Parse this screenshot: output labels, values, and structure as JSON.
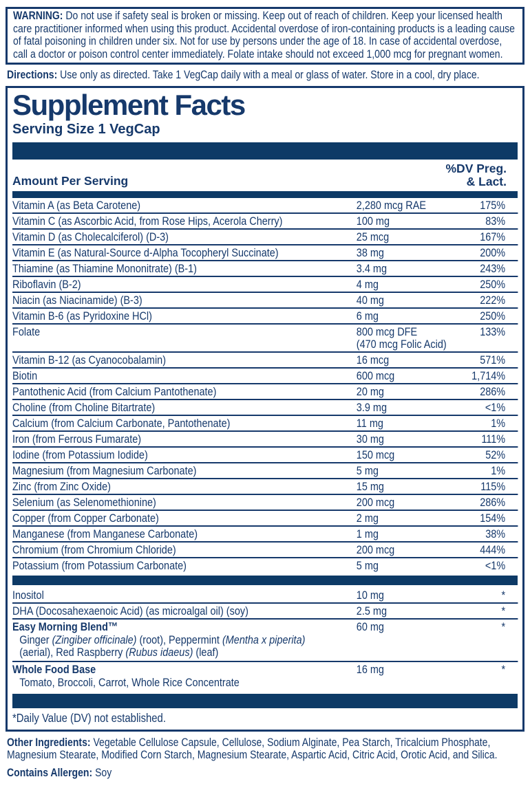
{
  "colors": {
    "ink": "#16396b",
    "bar": "#0d3a66"
  },
  "warning": {
    "label": "WARNING:",
    "text": "Do not use if safety seal is broken or missing. Keep out of reach of children. Keep your licensed health care practitioner informed when using this product. Accidental overdose of iron-containing products is a leading cause of fatal poisoning in children under six. Not for use by persons under the age of 18. In case of accidental overdose, call a doctor or poison control center immediately. Folate intake should not exceed 1,000 mcg for pregnant women."
  },
  "directions": {
    "label": "Directions:",
    "text": "Use only as directed. Take 1 VegCap daily with a meal or glass of water. Store in a cool, dry place."
  },
  "panel": {
    "title": "Supplement Facts",
    "serving_size": "Serving Size 1 VegCap",
    "header": {
      "amount_col": "Amount Per Serving",
      "dv_col_line1": "%DV Preg.",
      "dv_col_line2": "& Lact."
    },
    "sections": [
      {
        "rows": [
          {
            "name": "Vitamin A (as Beta Carotene)",
            "amount": "2,280 mcg RAE",
            "dv": "175%"
          },
          {
            "name": "Vitamin C (as Ascorbic Acid, from Rose Hips, Acerola Cherry)",
            "amount": "100 mg",
            "dv": "83%"
          },
          {
            "name": "Vitamin D (as Cholecalciferol) (D-3)",
            "amount": "25 mcg",
            "dv": "167%"
          },
          {
            "name": "Vitamin E (as Natural-Source d-Alpha Tocopheryl Succinate)",
            "amount": "38 mg",
            "dv": "200%"
          },
          {
            "name": "Thiamine (as Thiamine Mononitrate) (B-1)",
            "amount": "3.4 mg",
            "dv": "243%"
          },
          {
            "name": "Riboflavin (B-2)",
            "amount": "4 mg",
            "dv": "250%"
          },
          {
            "name": "Niacin (as Niacinamide) (B-3)",
            "amount": "40 mg",
            "dv": "222%"
          },
          {
            "name": "Vitamin B-6 (as Pyridoxine HCl)",
            "amount": "6 mg",
            "dv": "250%"
          },
          {
            "name": "Folate",
            "amount": "800 mcg DFE",
            "amount2": "(470 mcg Folic Acid)",
            "dv": "133%"
          },
          {
            "name": "Vitamin B-12 (as Cyanocobalamin)",
            "amount": "16 mcg",
            "dv": "571%"
          },
          {
            "name": "Biotin",
            "amount": "600 mcg",
            "dv": "1,714%"
          },
          {
            "name": "Pantothenic Acid (from Calcium Pantothenate)",
            "amount": "20 mg",
            "dv": "286%"
          },
          {
            "name": "Choline (from Choline Bitartrate)",
            "amount": "3.9 mg",
            "dv": "<1%"
          },
          {
            "name": "Calcium (from Calcium Carbonate, Pantothenate)",
            "amount": "11 mg",
            "dv": "1%"
          },
          {
            "name": "Iron (from Ferrous Fumarate)",
            "amount": "30 mg",
            "dv": "111%"
          },
          {
            "name": "Iodine (from Potassium Iodide)",
            "amount": "150 mcg",
            "dv": "52%"
          },
          {
            "name": "Magnesium (from Magnesium Carbonate)",
            "amount": "5 mg",
            "dv": "1%"
          },
          {
            "name": "Zinc (from Zinc Oxide)",
            "amount": "15 mg",
            "dv": "115%"
          },
          {
            "name": "Selenium (as Selenomethionine)",
            "amount": "200 mcg",
            "dv": "286%"
          },
          {
            "name": "Copper (from Copper Carbonate)",
            "amount": "2 mg",
            "dv": "154%"
          },
          {
            "name": "Manganese (from Manganese Carbonate)",
            "amount": "1 mg",
            "dv": "38%"
          },
          {
            "name": "Chromium (from Chromium Chloride)",
            "amount": "200 mcg",
            "dv": "444%"
          },
          {
            "name": "Potassium (from Potassium Carbonate)",
            "amount": "5 mg",
            "dv": "<1%"
          }
        ]
      },
      {
        "rows": [
          {
            "name": "Inositol",
            "amount": "10 mg",
            "dv": "*"
          },
          {
            "name": "DHA (Docosahexaenoic Acid) (as microalgal oil) (soy)",
            "amount": "2.5 mg",
            "dv": "*"
          },
          {
            "name": "Easy Morning Blend™",
            "bold": true,
            "amount": "60 mg",
            "dv": "*",
            "sub": [
              {
                "text": "Ginger ",
                "italic": false
              },
              {
                "text": "(Zingiber officinale)",
                "italic": true
              },
              {
                "text": " (root), Peppermint ",
                "italic": false
              },
              {
                "text": "(Mentha x piperita)",
                "italic": true
              },
              {
                "text": " (aerial), Red Raspberry ",
                "italic": false
              },
              {
                "text": "(Rubus idaeus)",
                "italic": true
              },
              {
                "text": " (leaf)",
                "italic": false
              }
            ]
          },
          {
            "name": "Whole Food Base",
            "bold": true,
            "amount": "16 mg",
            "dv": "*",
            "sub": [
              {
                "text": "Tomato, Broccoli, Carrot, Whole Rice Concentrate",
                "italic": false
              }
            ]
          }
        ]
      }
    ],
    "footnote": "*Daily Value (DV) not established."
  },
  "other_ingredients": {
    "label": "Other Ingredients:",
    "text": "Vegetable Cellulose Capsule, Cellulose, Sodium Alginate, Pea Starch, Tricalcium Phosphate, Magnesium Stearate, Modified Corn Starch, Magnesium Stearate, Aspartic Acid, Citric Acid, Orotic Acid, and Silica."
  },
  "allergen": {
    "label": "Contains Allergen:",
    "text": "Soy"
  }
}
